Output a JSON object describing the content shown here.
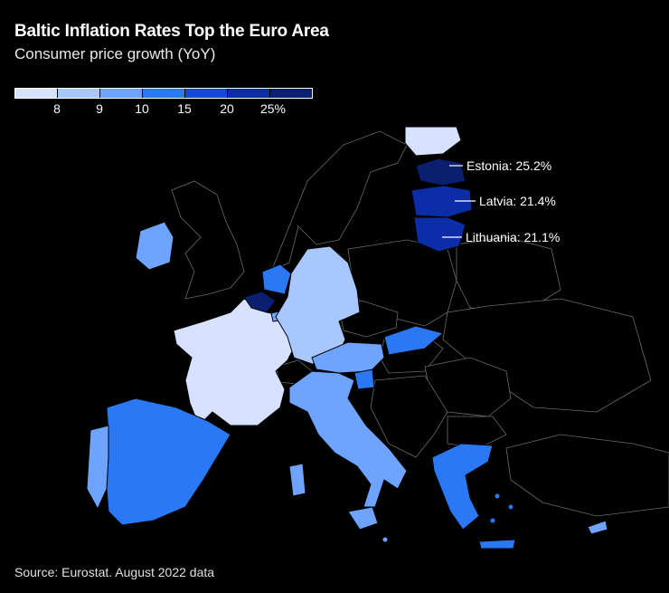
{
  "title": "Baltic Inflation Rates Top the Euro Area",
  "subtitle": "Consumer price growth (YoY)",
  "legend": {
    "colors": [
      "#d6e2ff",
      "#a9c7ff",
      "#6ea4ff",
      "#2b78f5",
      "#1348d8",
      "#0b2da8",
      "#0a1f70"
    ],
    "ticks": [
      "8",
      "9",
      "10",
      "15",
      "20",
      "25%"
    ]
  },
  "callouts": {
    "estonia": "Estonia: 25.2%",
    "latvia": "Latvia: 21.4%",
    "lithuania": "Lithuania: 21.1%"
  },
  "source": "Source: Eurostat. August 2022 data"
}
